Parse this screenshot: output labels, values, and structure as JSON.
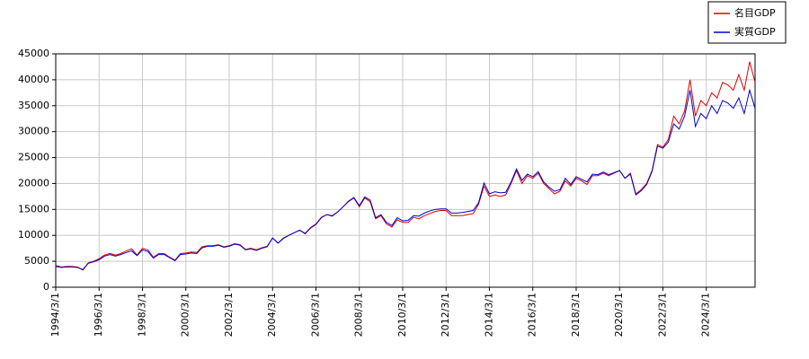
{
  "chart_data": {
    "type": "line",
    "categories": [
      "1994/3/1",
      null,
      null,
      null,
      null,
      null,
      null,
      null,
      "1996/3/1",
      null,
      null,
      null,
      null,
      null,
      null,
      null,
      "1998/3/1",
      null,
      null,
      null,
      null,
      null,
      null,
      null,
      "2000/3/1",
      null,
      null,
      null,
      null,
      null,
      null,
      null,
      "2002/3/1",
      null,
      null,
      null,
      null,
      null,
      null,
      null,
      "2004/3/1",
      null,
      null,
      null,
      null,
      null,
      null,
      null,
      "2006/3/1",
      null,
      null,
      null,
      null,
      null,
      null,
      null,
      "2008/3/1",
      null,
      null,
      null,
      null,
      null,
      null,
      null,
      "2010/3/1",
      null,
      null,
      null,
      null,
      null,
      null,
      null,
      "2012/3/1",
      null,
      null,
      null,
      null,
      null,
      null,
      null,
      "2014/3/1",
      null,
      null,
      null,
      null,
      null,
      null,
      null,
      "2016/3/1",
      null,
      null,
      null,
      null,
      null,
      null,
      null,
      "2018/3/1",
      null,
      null,
      null,
      null,
      null,
      null,
      null,
      "2020/3/1",
      null,
      null,
      null,
      null,
      null,
      null,
      null,
      "2022/3/1",
      null,
      null,
      null,
      null,
      null,
      null,
      null,
      "2024/3/1",
      null,
      null,
      null,
      null,
      null,
      null,
      null,
      null,
      null
    ],
    "series": [
      {
        "name": "名目GDP",
        "color": "#dd0000",
        "values": [
          4200,
          3900,
          4000,
          4000,
          3900,
          3300,
          4700,
          5000,
          5500,
          6200,
          6500,
          6200,
          6500,
          7000,
          7400,
          6200,
          7500,
          7200,
          5800,
          6500,
          6500,
          5800,
          5200,
          6500,
          6600,
          6800,
          6700,
          7800,
          8000,
          8000,
          8200,
          7800,
          8000,
          8400,
          8200,
          7300,
          7500,
          7200,
          7600,
          7900,
          9500,
          8500,
          9500,
          10000,
          10500,
          11000,
          10400,
          11500,
          12200,
          13500,
          14000,
          13800,
          14500,
          15500,
          16500,
          17200,
          15500,
          17200,
          16500,
          13200,
          13800,
          12200,
          11600,
          13000,
          12500,
          12500,
          13500,
          13200,
          13800,
          14200,
          14600,
          14800,
          14800,
          13800,
          13800,
          13800,
          14000,
          14200,
          16000,
          19500,
          17500,
          17800,
          17500,
          17800,
          20000,
          22500,
          20000,
          21500,
          21000,
          22000,
          20000,
          19000,
          18000,
          18500,
          20500,
          19500,
          21000,
          20500,
          19800,
          21500,
          21500,
          22000,
          21500,
          22000,
          22500,
          21000,
          22000,
          18000,
          18800,
          20000,
          22500,
          27500,
          27000,
          28500,
          33000,
          31500,
          34000,
          40000,
          33000,
          36000,
          35000,
          37500,
          36500,
          39500,
          39000,
          38000,
          41000,
          38000,
          43500,
          39500
        ]
      },
      {
        "name": "実質GDP",
        "color": "#0000cc",
        "values": [
          4000,
          3800,
          3900,
          3900,
          3800,
          3400,
          4600,
          4900,
          5300,
          6000,
          6300,
          6000,
          6300,
          6700,
          7000,
          6100,
          7200,
          6900,
          5600,
          6300,
          6300,
          5700,
          5100,
          6300,
          6400,
          6600,
          6500,
          7600,
          7900,
          7900,
          8100,
          7700,
          7900,
          8300,
          8100,
          7200,
          7400,
          7100,
          7500,
          7800,
          9500,
          8500,
          9400,
          10000,
          10500,
          11000,
          10300,
          11400,
          12100,
          13400,
          14000,
          13700,
          14500,
          15500,
          16600,
          17300,
          15700,
          17400,
          16800,
          13400,
          14000,
          12500,
          11900,
          13400,
          12800,
          12900,
          13800,
          13700,
          14300,
          14700,
          15000,
          15100,
          15100,
          14300,
          14300,
          14400,
          14600,
          14800,
          16300,
          20100,
          18000,
          18400,
          18200,
          18300,
          20300,
          22800,
          20600,
          21800,
          21300,
          22300,
          20300,
          19300,
          18500,
          18800,
          21000,
          19800,
          21300,
          20800,
          20300,
          21800,
          21700,
          22200,
          21700,
          22100,
          22500,
          21000,
          21800,
          17800,
          18600,
          19800,
          22300,
          27200,
          26800,
          28000,
          31500,
          30500,
          33000,
          38000,
          31000,
          33500,
          32500,
          35000,
          33500,
          36000,
          35500,
          34500,
          36500,
          33500,
          38000,
          34500
        ]
      }
    ],
    "ylim": [
      0,
      45000
    ],
    "yticks": [
      0,
      5000,
      10000,
      15000,
      20000,
      25000,
      30000,
      35000,
      40000,
      45000
    ],
    "grid": true,
    "legend": "top-right"
  }
}
